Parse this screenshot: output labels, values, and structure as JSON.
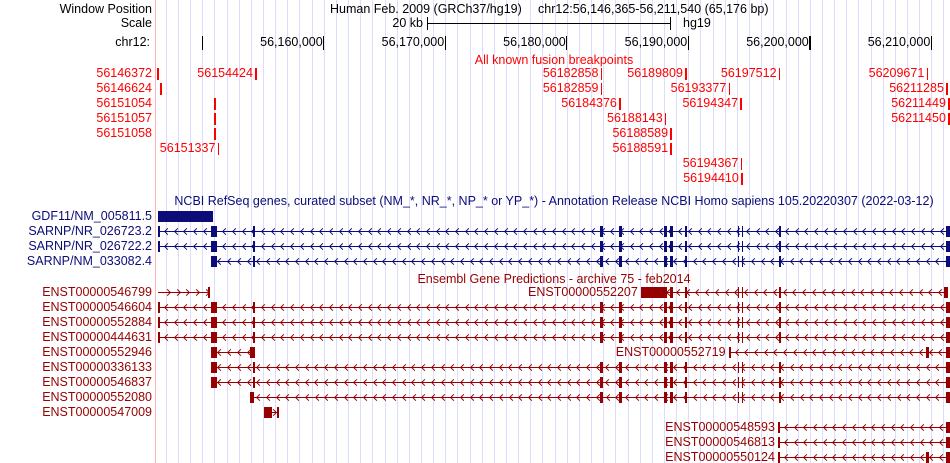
{
  "header": {
    "window_position_label": "Window Position",
    "assembly_text": "Human Feb. 2009 (GRCh37/hg19)",
    "position_text": "chr12:56,146,365-56,211,540 (65,176 bp)",
    "scale_label": "Scale",
    "scale_value": "20 kb",
    "scale_assembly": "hg19",
    "chrom_label": "chr12:"
  },
  "view": {
    "chrom": "chr12",
    "start": 56146365,
    "end": 56211540,
    "scale_bar_bp": 20000
  },
  "ruler": {
    "ticks": [
      {
        "pos": 56150000,
        "label": ""
      },
      {
        "pos": 56160000,
        "label": "56,160,000"
      },
      {
        "pos": 56170000,
        "label": "56,170,000"
      },
      {
        "pos": 56180000,
        "label": "56,180,000"
      },
      {
        "pos": 56190000,
        "label": "56,190,000"
      },
      {
        "pos": 56200000,
        "label": "56,200,000"
      },
      {
        "pos": 56210000,
        "label": "56,210,000"
      }
    ]
  },
  "colors": {
    "text": "#000000",
    "breakpoints": "#ff0000",
    "refseq": "#0c0c78",
    "ensembl": "#960000",
    "gridline": "#dcdcff",
    "margin_line": "#ffb4b4"
  },
  "tracks": {
    "breakpoints": {
      "title": "All known fusion breakpoints",
      "rows": [
        [
          {
            "label": "56146372",
            "pos": 56146372,
            "margin": true
          },
          {
            "label": "56154424",
            "pos": 56154424,
            "margin": false
          },
          {
            "label": "56182858",
            "pos": 56182858,
            "margin": false
          },
          {
            "label": "56189809",
            "pos": 56189809,
            "margin": false
          },
          {
            "label": "56197512",
            "pos": 56197512,
            "margin": false
          },
          {
            "label": "56209671",
            "pos": 56209671,
            "margin": false
          }
        ],
        [
          {
            "label": "56146624",
            "pos": 56146624,
            "margin": true
          },
          {
            "label": "56182859",
            "pos": 56182859,
            "margin": false
          },
          {
            "label": "56193377",
            "pos": 56193377,
            "margin": false
          },
          {
            "label": "56211285",
            "pos": 56211285,
            "margin": false
          }
        ],
        [
          {
            "label": "56151054",
            "pos": 56151054,
            "margin": true
          },
          {
            "label": "56184376",
            "pos": 56184376,
            "margin": false
          },
          {
            "label": "56194347",
            "pos": 56194347,
            "margin": false
          },
          {
            "label": "56211449",
            "pos": 56211449,
            "margin": false
          }
        ],
        [
          {
            "label": "56151057",
            "pos": 56151057,
            "margin": true
          },
          {
            "label": "56188143",
            "pos": 56188143,
            "margin": false
          },
          {
            "label": "56211450",
            "pos": 56211450,
            "margin": false
          }
        ],
        [
          {
            "label": "56151058",
            "pos": 56151058,
            "margin": true
          },
          {
            "label": "56188589",
            "pos": 56188589,
            "margin": false
          }
        ],
        [
          {
            "label": "56151337",
            "pos": 56151337,
            "margin": false
          },
          {
            "label": "56188591",
            "pos": 56188591,
            "margin": false
          }
        ],
        [
          {
            "label": "56194367",
            "pos": 56194367,
            "margin": false
          }
        ],
        [
          {
            "label": "56194410",
            "pos": 56194410,
            "margin": false
          }
        ]
      ]
    },
    "refseq": {
      "title": "NCBI RefSeq genes, curated subset (NM_*, NR_*, NP_* or YP_*) - Annotation Release NCBI Homo sapiens 105.20220307 (2022-03-12)",
      "items": [
        {
          "label": "GDF11/NM_005811.5",
          "row": 0,
          "margin": true,
          "glyph": "box",
          "strand": "+",
          "start": 56146365,
          "end": 56150920,
          "exons": [
            [
              56146365,
              56150920
            ]
          ]
        },
        {
          "label": "SARNP/NR_026723.2",
          "row": 1,
          "margin": true,
          "glyph": "tx",
          "strand": "-",
          "start": 56146365,
          "end": 56211540,
          "exons": [
            [
              56146365,
              56146520
            ],
            [
              56150760,
              56151260
            ],
            [
              56154150,
              56154330
            ],
            [
              56182770,
              56182990
            ],
            [
              56184290,
              56184510
            ],
            [
              56188010,
              56188230
            ],
            [
              56188510,
              56188730
            ],
            [
              56189720,
              56189940
            ],
            [
              56194050,
              56194210
            ],
            [
              56194380,
              56194540
            ],
            [
              56197430,
              56197650
            ],
            [
              56211230,
              56211540
            ]
          ]
        },
        {
          "label": "SARNP/NR_026722.2",
          "row": 2,
          "margin": true,
          "glyph": "tx",
          "strand": "-",
          "start": 56146365,
          "end": 56211540,
          "exons": [
            [
              56146365,
              56146520
            ],
            [
              56150760,
              56151260
            ],
            [
              56154150,
              56154330
            ],
            [
              56182770,
              56182990
            ],
            [
              56184290,
              56184510
            ],
            [
              56188010,
              56188230
            ],
            [
              56188510,
              56188730
            ],
            [
              56189720,
              56189940
            ],
            [
              56194050,
              56194210
            ],
            [
              56194380,
              56194540
            ],
            [
              56197430,
              56197650
            ],
            [
              56211230,
              56211540
            ]
          ]
        },
        {
          "label": "SARNP/NM_033082.4",
          "row": 3,
          "margin": true,
          "glyph": "tx",
          "strand": "-",
          "start": 56150760,
          "end": 56211540,
          "exons": [
            [
              56150760,
              56151260
            ],
            [
              56154150,
              56154330
            ],
            [
              56182770,
              56182990
            ],
            [
              56184290,
              56184510
            ],
            [
              56188010,
              56188230
            ],
            [
              56188510,
              56188730
            ],
            [
              56189720,
              56189940
            ],
            [
              56194050,
              56194210
            ],
            [
              56194380,
              56194540
            ],
            [
              56197430,
              56197650
            ],
            [
              56211230,
              56211540
            ]
          ]
        }
      ]
    },
    "ensembl": {
      "title": "Ensembl Gene Predictions - archive 75 - feb2014",
      "items": [
        {
          "label": "ENST00000546799",
          "row": 0,
          "margin": true,
          "glyph": "tx",
          "strand": "+",
          "start": 56146365,
          "end": 56150640,
          "exons": [
            [
              56150450,
              56150640
            ]
          ]
        },
        {
          "label": "ENST00000552207",
          "row": 0,
          "margin": false,
          "glyph": "tx",
          "strand": "-",
          "start": 56186100,
          "end": 56211350,
          "exons": [
            [
              56186100,
              56188230
            ],
            [
              56188510,
              56188730
            ],
            [
              56189720,
              56189940
            ],
            [
              56194050,
              56194210
            ],
            [
              56194380,
              56194540
            ],
            [
              56197430,
              56197650
            ],
            [
              56211050,
              56211350
            ]
          ]
        },
        {
          "label": "ENST00000546604",
          "row": 1,
          "margin": true,
          "glyph": "tx",
          "strand": "-",
          "start": 56146365,
          "end": 56211540,
          "exons": [
            [
              56146365,
              56146520
            ],
            [
              56150760,
              56151260
            ],
            [
              56154150,
              56154330
            ],
            [
              56182770,
              56182990
            ],
            [
              56184290,
              56184510
            ],
            [
              56188010,
              56188230
            ],
            [
              56188510,
              56188730
            ],
            [
              56189720,
              56189940
            ],
            [
              56194050,
              56194210
            ],
            [
              56194380,
              56194540
            ],
            [
              56197430,
              56197650
            ],
            [
              56211230,
              56211540
            ]
          ]
        },
        {
          "label": "ENST00000552884",
          "row": 2,
          "margin": true,
          "glyph": "tx",
          "strand": "-",
          "start": 56146365,
          "end": 56211540,
          "exons": [
            [
              56146365,
              56146520
            ],
            [
              56150760,
              56151260
            ],
            [
              56154150,
              56154330
            ],
            [
              56182770,
              56182990
            ],
            [
              56184290,
              56184510
            ],
            [
              56188010,
              56188230
            ],
            [
              56188510,
              56188730
            ],
            [
              56189720,
              56189940
            ],
            [
              56194050,
              56194210
            ],
            [
              56194380,
              56194540
            ],
            [
              56197430,
              56197650
            ],
            [
              56211230,
              56211540
            ]
          ]
        },
        {
          "label": "ENST00000444631",
          "row": 3,
          "margin": true,
          "glyph": "tx",
          "strand": "-",
          "start": 56146365,
          "end": 56211540,
          "exons": [
            [
              56146365,
              56146520
            ],
            [
              56150760,
              56151260
            ],
            [
              56154150,
              56154330
            ],
            [
              56182770,
              56182990
            ],
            [
              56184290,
              56184510
            ],
            [
              56188010,
              56188230
            ],
            [
              56188510,
              56188730
            ],
            [
              56189720,
              56189940
            ],
            [
              56194050,
              56194210
            ],
            [
              56194380,
              56194540
            ],
            [
              56197430,
              56197650
            ],
            [
              56211230,
              56211540
            ]
          ]
        },
        {
          "label": "ENST00000552946",
          "row": 4,
          "margin": true,
          "glyph": "tx",
          "strand": "-",
          "start": 56150760,
          "end": 56154350,
          "exons": [
            [
              56150760,
              56151260
            ],
            [
              56153960,
              56154350
            ]
          ]
        },
        {
          "label": "ENST00000552719",
          "row": 4,
          "margin": false,
          "glyph": "tx",
          "strand": "-",
          "start": 56193320,
          "end": 56211540,
          "exons": [
            [
              56193320,
              56193510
            ],
            [
              56209560,
              56209790
            ],
            [
              56211230,
              56211540
            ]
          ]
        },
        {
          "label": "ENST00000336133",
          "row": 5,
          "margin": true,
          "glyph": "tx",
          "strand": "-",
          "start": 56150760,
          "end": 56211540,
          "exons": [
            [
              56150760,
              56151260
            ],
            [
              56154150,
              56154330
            ],
            [
              56182770,
              56182990
            ],
            [
              56184290,
              56184510
            ],
            [
              56188010,
              56188230
            ],
            [
              56188510,
              56188730
            ],
            [
              56189720,
              56189940
            ],
            [
              56194050,
              56194210
            ],
            [
              56194380,
              56194540
            ],
            [
              56197430,
              56197650
            ],
            [
              56211230,
              56211540
            ]
          ]
        },
        {
          "label": "ENST00000546837",
          "row": 6,
          "margin": true,
          "glyph": "tx",
          "strand": "-",
          "start": 56150760,
          "end": 56211540,
          "exons": [
            [
              56150760,
              56151260
            ],
            [
              56154150,
              56154330
            ],
            [
              56182770,
              56182990
            ],
            [
              56184290,
              56184510
            ],
            [
              56188010,
              56188230
            ],
            [
              56188510,
              56188730
            ],
            [
              56189720,
              56189940
            ],
            [
              56194050,
              56194210
            ],
            [
              56194380,
              56194540
            ],
            [
              56197430,
              56197650
            ],
            [
              56211230,
              56211540
            ]
          ]
        },
        {
          "label": "ENST00000552080",
          "row": 7,
          "margin": true,
          "glyph": "tx",
          "strand": "-",
          "start": 56153960,
          "end": 56211540,
          "exons": [
            [
              56153960,
              56154240
            ],
            [
              56182770,
              56182990
            ],
            [
              56184290,
              56184510
            ],
            [
              56188010,
              56188230
            ],
            [
              56188510,
              56188730
            ],
            [
              56189720,
              56189940
            ],
            [
              56194050,
              56194210
            ],
            [
              56194380,
              56194540
            ],
            [
              56197430,
              56197650
            ],
            [
              56211230,
              56211540
            ]
          ]
        },
        {
          "label": "ENST00000547009",
          "row": 8,
          "margin": true,
          "glyph": "tx",
          "strand": "+",
          "start": 56155120,
          "end": 56156340,
          "exons": [
            [
              56155120,
              56155760
            ],
            [
              56156180,
              56156340
            ]
          ]
        },
        {
          "label": "ENST00000548593",
          "row": 9,
          "margin": false,
          "glyph": "tx",
          "strand": "-",
          "start": 56197380,
          "end": 56211540,
          "exons": [
            [
              56197380,
              56197570
            ],
            [
              56211230,
              56211540
            ]
          ]
        },
        {
          "label": "ENST00000546813",
          "row": 10,
          "margin": false,
          "glyph": "tx",
          "strand": "-",
          "start": 56197380,
          "end": 56211540,
          "exons": [
            [
              56197380,
              56197570
            ],
            [
              56211230,
              56211540
            ]
          ]
        },
        {
          "label": "ENST00000550124",
          "row": 11,
          "margin": false,
          "glyph": "tx",
          "strand": "-",
          "start": 56197380,
          "end": 56211540,
          "exons": [
            [
              56197380,
              56197570
            ],
            [
              56209560,
              56209790
            ],
            [
              56211230,
              56211540
            ]
          ]
        }
      ]
    }
  }
}
